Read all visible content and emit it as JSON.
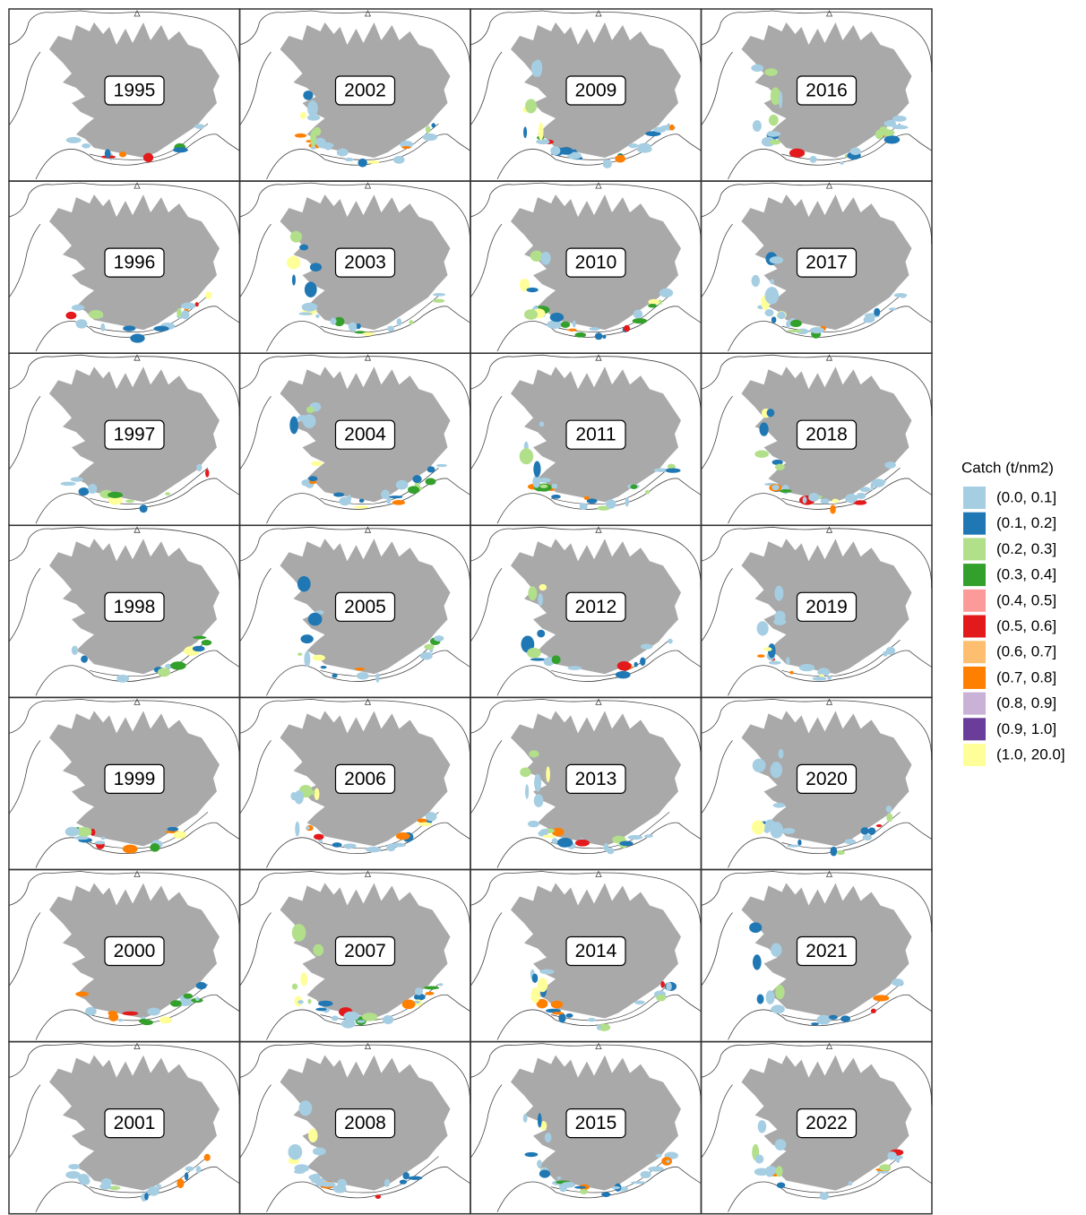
{
  "panels": [
    {
      "label": "1995"
    },
    {
      "label": "1996"
    },
    {
      "label": "1997"
    },
    {
      "label": "1998"
    },
    {
      "label": "1999"
    },
    {
      "label": "2000"
    },
    {
      "label": "2001"
    },
    {
      "label": "2002"
    },
    {
      "label": "2003"
    },
    {
      "label": "2004"
    },
    {
      "label": "2005"
    },
    {
      "label": "2006"
    },
    {
      "label": "2007"
    },
    {
      "label": "2008"
    },
    {
      "label": "2009"
    },
    {
      "label": "2010"
    },
    {
      "label": "2011"
    },
    {
      "label": "2012"
    },
    {
      "label": "2013"
    },
    {
      "label": "2014"
    },
    {
      "label": "2015"
    },
    {
      "label": "2016"
    },
    {
      "label": "2017"
    },
    {
      "label": "2018"
    },
    {
      "label": "2019"
    },
    {
      "label": "2020"
    },
    {
      "label": "2021"
    },
    {
      "label": "2022"
    }
  ],
  "legend": {
    "title": "Catch (t/nm2)",
    "items": [
      {
        "label": "(0.0, 0.1]",
        "color": "#a6cee3"
      },
      {
        "label": "(0.1, 0.2]",
        "color": "#1f78b4"
      },
      {
        "label": "(0.2, 0.3]",
        "color": "#b2df8a"
      },
      {
        "label": "(0.3, 0.4]",
        "color": "#33a02c"
      },
      {
        "label": "(0.4, 0.5]",
        "color": "#fb9a99"
      },
      {
        "label": "(0.5, 0.6]",
        "color": "#e31a1c"
      },
      {
        "label": "(0.6, 0.7]",
        "color": "#fdbf6f"
      },
      {
        "label": "(0.7, 0.8]",
        "color": "#ff7f00"
      },
      {
        "label": "(0.8, 0.9]",
        "color": "#cab2d6"
      },
      {
        "label": "(0.9, 1.0]",
        "color": "#6a3d9a"
      },
      {
        "label": "(1.0, 20.0]",
        "color": "#ffff99"
      }
    ]
  }
}
